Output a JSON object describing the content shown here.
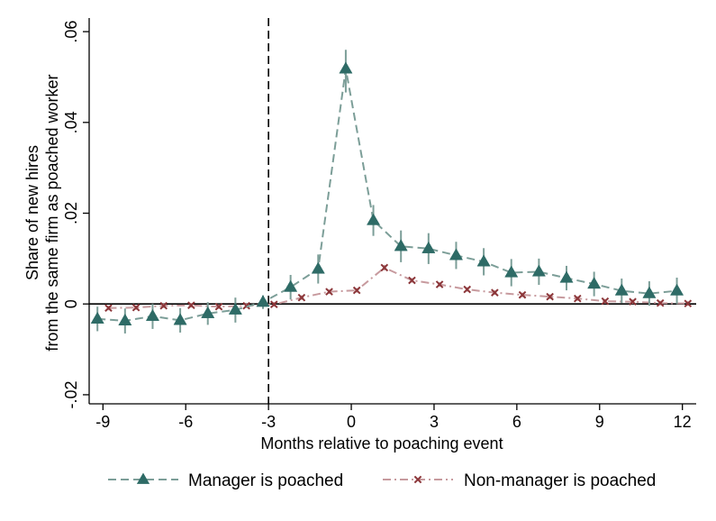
{
  "chart_data": {
    "type": "line",
    "xlabel": "Months relative to poaching event",
    "ylabel_lines": [
      "Share of new hires",
      "from the same firm as poached worker"
    ],
    "xlim": [
      -9.5,
      12.5
    ],
    "ylim": [
      -0.022,
      0.063
    ],
    "x_ticks": [
      -9,
      -6,
      -3,
      0,
      3,
      6,
      9,
      12
    ],
    "x_tick_labels": [
      "-9",
      "-6",
      "-3",
      "0",
      "3",
      "6",
      "9",
      "12"
    ],
    "y_ticks": [
      -0.02,
      0,
      0.02,
      0.04,
      0.06
    ],
    "y_tick_labels": [
      "-.02",
      "0",
      ".02",
      ".04",
      ".06"
    ],
    "reference_x": -3,
    "reference_y": 0,
    "legend_position": "bottom",
    "grid": false,
    "series": [
      {
        "name": "Manager is poached",
        "color": "#7c9e98",
        "marker_color": "#2e6b66",
        "marker": "triangle",
        "x_offset": -0.2,
        "x": [
          -9,
          -8,
          -7,
          -6,
          -5,
          -4,
          -3,
          -2,
          -1,
          0,
          1,
          2,
          3,
          4,
          5,
          6,
          7,
          8,
          9,
          10,
          11,
          12
        ],
        "y": [
          -0.0033,
          -0.0037,
          -0.0027,
          -0.0036,
          -0.0021,
          -0.0013,
          0.0004,
          0.0037,
          0.0077,
          0.0518,
          0.0184,
          0.0127,
          0.0122,
          0.0107,
          0.0093,
          0.0069,
          0.0071,
          0.0057,
          0.0044,
          0.0029,
          0.0023,
          0.0029
        ],
        "ci_low": [
          -0.006,
          -0.0065,
          -0.0055,
          -0.0063,
          -0.0046,
          -0.0041,
          -0.0011,
          0.001,
          0.0045,
          0.0466,
          0.015,
          0.0092,
          0.0088,
          0.0077,
          0.0063,
          0.0039,
          0.0042,
          0.003,
          0.0017,
          0.0002,
          -0.0004,
          0.0
        ],
        "ci_high": [
          -0.0006,
          -0.001,
          0.0,
          -0.0009,
          0.0004,
          0.0014,
          0.0019,
          0.0064,
          0.0109,
          0.056,
          0.0218,
          0.0162,
          0.0156,
          0.0137,
          0.0123,
          0.0099,
          0.01,
          0.0084,
          0.0071,
          0.0056,
          0.005,
          0.0058
        ]
      },
      {
        "name": "Non-manager is poached",
        "color": "#c79a9e",
        "marker_color": "#8b3538",
        "marker": "x",
        "x_offset": 0.2,
        "x": [
          -9,
          -8,
          -7,
          -6,
          -5,
          -4,
          -3,
          -2,
          -1,
          0,
          1,
          2,
          3,
          4,
          5,
          6,
          7,
          8,
          9,
          10,
          11,
          12
        ],
        "y": [
          -0.0009,
          -0.0008,
          -0.0004,
          -0.0003,
          -0.0006,
          -0.0004,
          -0.0001,
          0.0014,
          0.0027,
          0.003,
          0.008,
          0.0052,
          0.0043,
          0.0032,
          0.0025,
          0.002,
          0.0016,
          0.0012,
          0.0006,
          0.0005,
          0.0002,
          0.0001
        ],
        "ci_low": [
          -0.0014,
          -0.0013,
          -0.0009,
          -0.0008,
          -0.0011,
          -0.0009,
          -0.0006,
          0.0009,
          0.0022,
          0.0025,
          0.0074,
          0.0047,
          0.0038,
          0.0027,
          0.002,
          0.0015,
          0.0011,
          0.0007,
          0.0001,
          0.0,
          -0.0003,
          -0.0004
        ],
        "ci_high": [
          -0.0004,
          -0.0003,
          0.0001,
          0.0002,
          -0.0001,
          0.0001,
          0.0004,
          0.0019,
          0.0032,
          0.0035,
          0.0086,
          0.0057,
          0.0048,
          0.0037,
          0.003,
          0.0025,
          0.0021,
          0.0017,
          0.0011,
          0.001,
          0.0007,
          0.0006
        ]
      }
    ]
  }
}
